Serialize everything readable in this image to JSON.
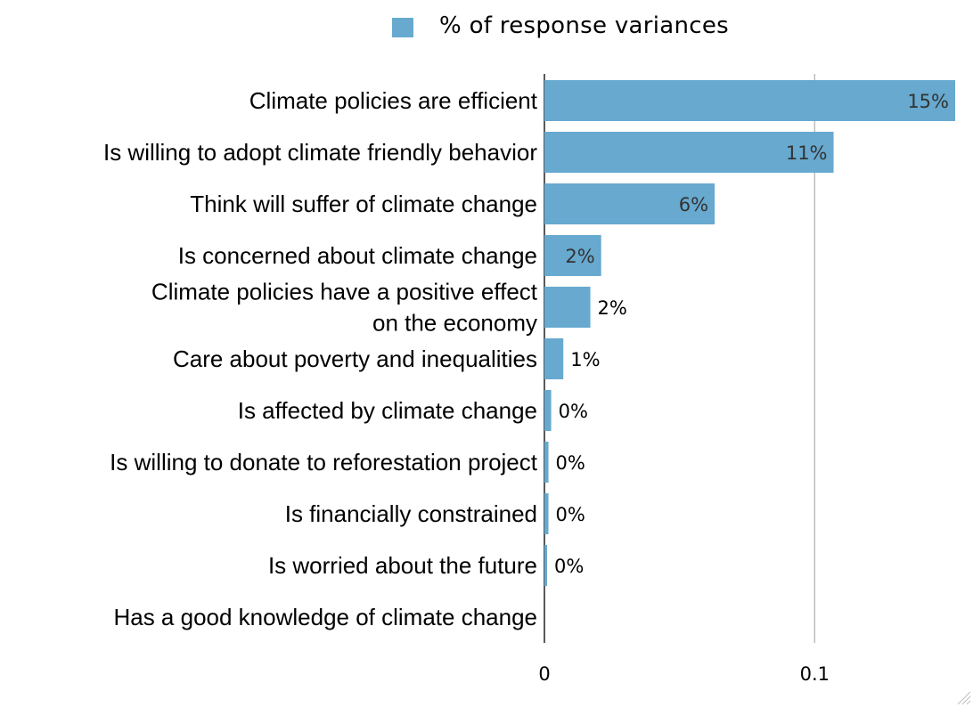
{
  "legend": {
    "label": "% of response variances",
    "color": "#67a9cf"
  },
  "colors": {
    "bar": "#67a9cf",
    "inside_label": "#333333",
    "outside_label": "#000000",
    "axis": "#000000",
    "grid": "#b3b3b3"
  },
  "chart_data": {
    "type": "bar",
    "orientation": "horizontal",
    "series": [
      {
        "name": "% of response variances",
        "values": [
          0.152,
          0.107,
          0.063,
          0.021,
          0.017,
          0.007,
          0.0025,
          0.0015,
          0.0015,
          0.001,
          0.0
        ]
      }
    ],
    "categories": [
      "Climate policies are efficient",
      "Is willing to adopt climate friendly behavior",
      "Think will suffer of climate change",
      "Is concerned about climate change",
      "Climate policies have a positive effect on the economy",
      "Care about poverty and inequalities",
      "Is affected by climate change",
      "Is willing to donate to reforestation project",
      "Is financially constrained",
      "Is worried about the future",
      "Has a good knowledge of climate change"
    ],
    "category_lines": [
      [
        "Climate policies are efficient"
      ],
      [
        "Is willing to adopt climate friendly behavior"
      ],
      [
        "Think will suffer of climate change"
      ],
      [
        "Is concerned about climate change"
      ],
      [
        "Climate policies have a positive effect ",
        "on the economy"
      ],
      [
        "Care about poverty and inequalities"
      ],
      [
        "Is affected by climate change"
      ],
      [
        "Is willing to donate to reforestation project"
      ],
      [
        "Is financially constrained"
      ],
      [
        "Is worried about the future"
      ],
      [
        "Has a good knowledge of climate change"
      ]
    ],
    "data_labels": [
      "15%",
      "11%",
      "6%",
      "2%",
      "2%",
      "1%",
      "0%",
      "0%",
      "0%",
      "0%",
      ""
    ],
    "x_ticks": [
      0,
      0.1
    ],
    "x_tick_labels": [
      "0",
      "0.1"
    ],
    "xlim": [
      0,
      0.152
    ],
    "grid": true,
    "legend_position": "top-center"
  }
}
